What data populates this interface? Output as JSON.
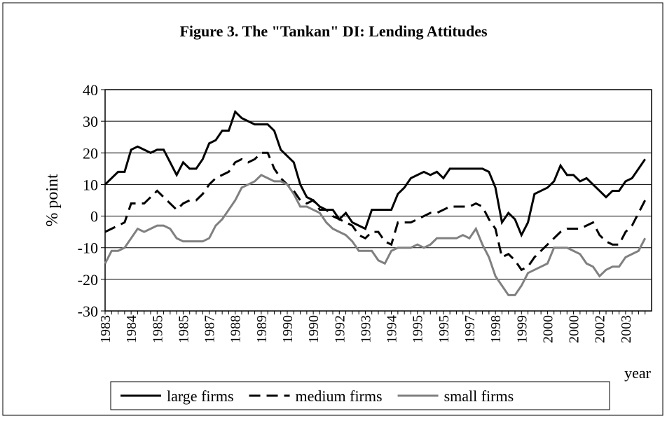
{
  "chart_data": {
    "type": "line",
    "title": "Figure 3. The \"Tankan\" DI: Lending Attitudes",
    "y_label": "% point",
    "x_label": "year",
    "categories": [
      "1983",
      null,
      null,
      null,
      "1984",
      null,
      null,
      null,
      "1985",
      null,
      null,
      null,
      "1985",
      null,
      null,
      null,
      "1987",
      null,
      null,
      null,
      "1988",
      null,
      null,
      null,
      "1989",
      null,
      null,
      null,
      "1990",
      null,
      null,
      null,
      "1990",
      null,
      null,
      null,
      "1992",
      null,
      null,
      null,
      "1993",
      null,
      null,
      null,
      "1994",
      null,
      null,
      null,
      "1995",
      null,
      null,
      null,
      "1995",
      null,
      null,
      null,
      "1997",
      null,
      null,
      null,
      "1998",
      null,
      null,
      null,
      "1999",
      null,
      null,
      null,
      "2000",
      null,
      null,
      null,
      "2000",
      null,
      null,
      null,
      "2002",
      null,
      null,
      null,
      "2003",
      null,
      null,
      null
    ],
    "series": [
      {
        "name": "large firms",
        "color": "#000000",
        "line_style": "solid",
        "values": [
          10,
          12,
          14,
          14,
          21,
          22,
          21,
          20,
          21,
          21,
          17,
          13,
          17,
          15,
          15,
          18,
          23,
          24,
          27,
          27,
          33,
          31,
          30,
          29,
          29,
          29,
          27,
          21,
          19,
          17,
          10,
          6,
          5,
          3,
          2,
          2,
          -1,
          1,
          -2,
          -3,
          -4,
          2,
          2,
          2,
          2,
          7,
          9,
          12,
          13,
          14,
          13,
          14,
          12,
          15,
          15,
          15,
          15,
          15,
          15,
          14,
          9,
          -2,
          1,
          -1,
          -6,
          -2,
          7,
          8,
          9,
          11,
          16,
          13,
          13,
          11,
          12,
          10,
          8,
          6,
          8,
          8,
          11,
          12,
          15,
          18
        ]
      },
      {
        "name": "medium firms",
        "color": "#000000",
        "line_style": "dashed",
        "values": [
          -5,
          -4,
          -3,
          -2,
          4,
          4,
          4,
          6,
          8,
          6,
          4,
          2,
          4,
          5,
          5,
          7,
          10,
          12,
          13,
          14,
          17,
          18,
          17,
          18,
          20,
          20,
          15,
          12,
          10,
          8,
          5,
          4,
          5,
          2,
          2,
          0,
          -1,
          -2,
          -3,
          -6,
          -7,
          -5,
          -5,
          -8,
          -9,
          -2,
          -2,
          -2,
          -1,
          0,
          1,
          1,
          2,
          3,
          3,
          3,
          3,
          4,
          3,
          -1,
          -4,
          -13,
          -12,
          -14,
          -17,
          -16,
          -13,
          -11,
          -9,
          -7,
          -5,
          -4,
          -4,
          -4,
          -3,
          -2,
          -6,
          -8,
          -9,
          -9,
          -5,
          -3,
          1,
          5
        ]
      },
      {
        "name": "small firms",
        "color": "#808080",
        "line_style": "solid",
        "values": [
          -15,
          -11,
          -11,
          -10,
          -7,
          -4,
          -5,
          -4,
          -3,
          -3,
          -4,
          -7,
          -8,
          -8,
          -8,
          -8,
          -7,
          -3,
          -1,
          2,
          5,
          9,
          10,
          11,
          13,
          12,
          11,
          11,
          10,
          7,
          3,
          3,
          2,
          1,
          -2,
          -4,
          -5,
          -6,
          -8,
          -11,
          -11,
          -11,
          -14,
          -15,
          -11,
          -10,
          -10,
          -10,
          -9,
          -10,
          -9,
          -7,
          -7,
          -7,
          -7,
          -6,
          -7,
          -4,
          -9,
          -13,
          -19,
          -22,
          -25,
          -25,
          -22,
          -18,
          -17,
          -16,
          -15,
          -10,
          -10,
          -10,
          -11,
          -12,
          -15,
          -16,
          -19,
          -17,
          -16,
          -16,
          -13,
          -12,
          -11,
          -7
        ]
      }
    ],
    "ylim": [
      -30,
      40
    ],
    "yticks": [
      -30,
      -20,
      -10,
      0,
      10,
      20,
      30,
      40
    ],
    "grid": true,
    "legend": "bottom"
  }
}
